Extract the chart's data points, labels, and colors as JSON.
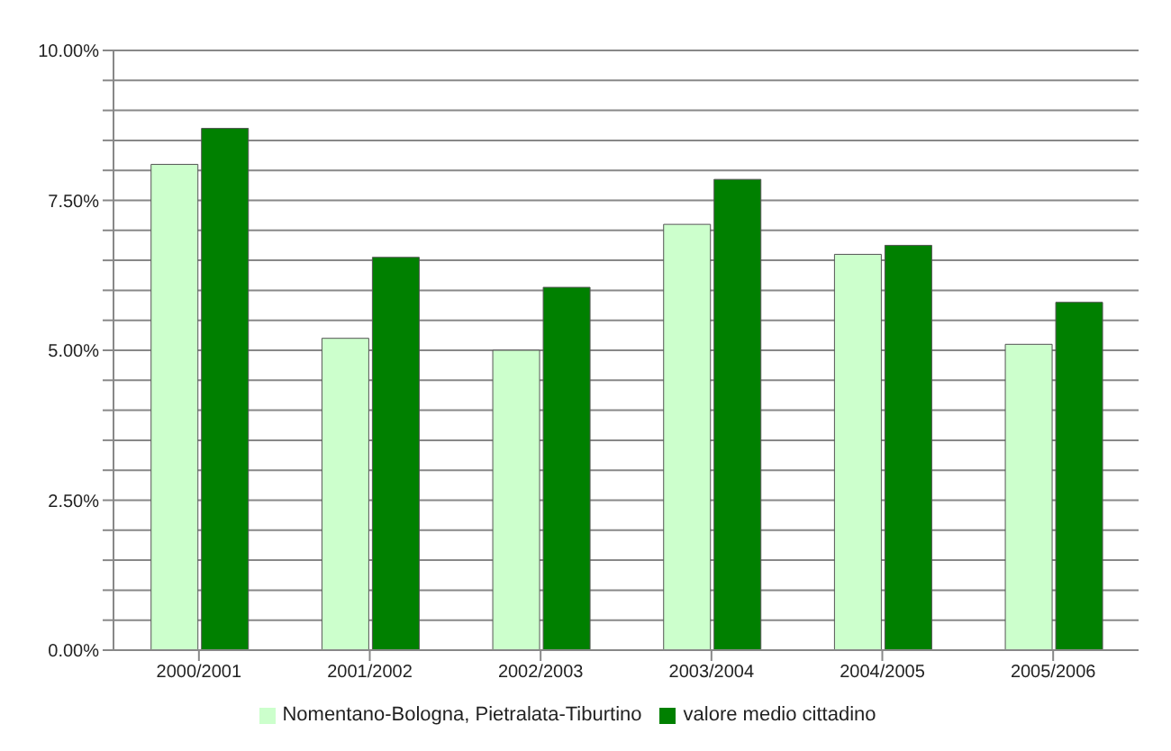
{
  "chart_data": {
    "type": "bar",
    "categories": [
      "2000/2001",
      "2001/2002",
      "2002/2003",
      "2003/2004",
      "2004/2005",
      "2005/2006"
    ],
    "series": [
      {
        "name": "Nomentano-Bologna, Pietralata-Tiburtino",
        "color": "#ccffcc",
        "values": [
          8.1,
          5.2,
          5.0,
          7.1,
          6.6,
          5.1
        ]
      },
      {
        "name": "valore medio cittadino",
        "color": "#008000",
        "values": [
          8.7,
          6.55,
          6.05,
          7.85,
          6.75,
          5.8
        ]
      }
    ],
    "ylim": [
      0,
      10
    ],
    "yticks": [
      {
        "value": 0,
        "label": "0.00%"
      },
      {
        "value": 0.5,
        "label": null
      },
      {
        "value": 1,
        "label": null
      },
      {
        "value": 1.5,
        "label": null
      },
      {
        "value": 2,
        "label": null
      },
      {
        "value": 2.5,
        "label": "2.50%"
      },
      {
        "value": 3,
        "label": null
      },
      {
        "value": 3.5,
        "label": null
      },
      {
        "value": 4,
        "label": null
      },
      {
        "value": 4.5,
        "label": null
      },
      {
        "value": 5,
        "label": "5.00%"
      },
      {
        "value": 5.5,
        "label": null
      },
      {
        "value": 6,
        "label": null
      },
      {
        "value": 6.5,
        "label": null
      },
      {
        "value": 7,
        "label": null
      },
      {
        "value": 7.5,
        "label": "7.50%"
      },
      {
        "value": 8,
        "label": null
      },
      {
        "value": 8.5,
        "label": null
      },
      {
        "value": 9,
        "label": null
      },
      {
        "value": 9.5,
        "label": null
      },
      {
        "value": 10,
        "label": "10.00%"
      }
    ],
    "grid": "y",
    "legend": "bottom"
  }
}
